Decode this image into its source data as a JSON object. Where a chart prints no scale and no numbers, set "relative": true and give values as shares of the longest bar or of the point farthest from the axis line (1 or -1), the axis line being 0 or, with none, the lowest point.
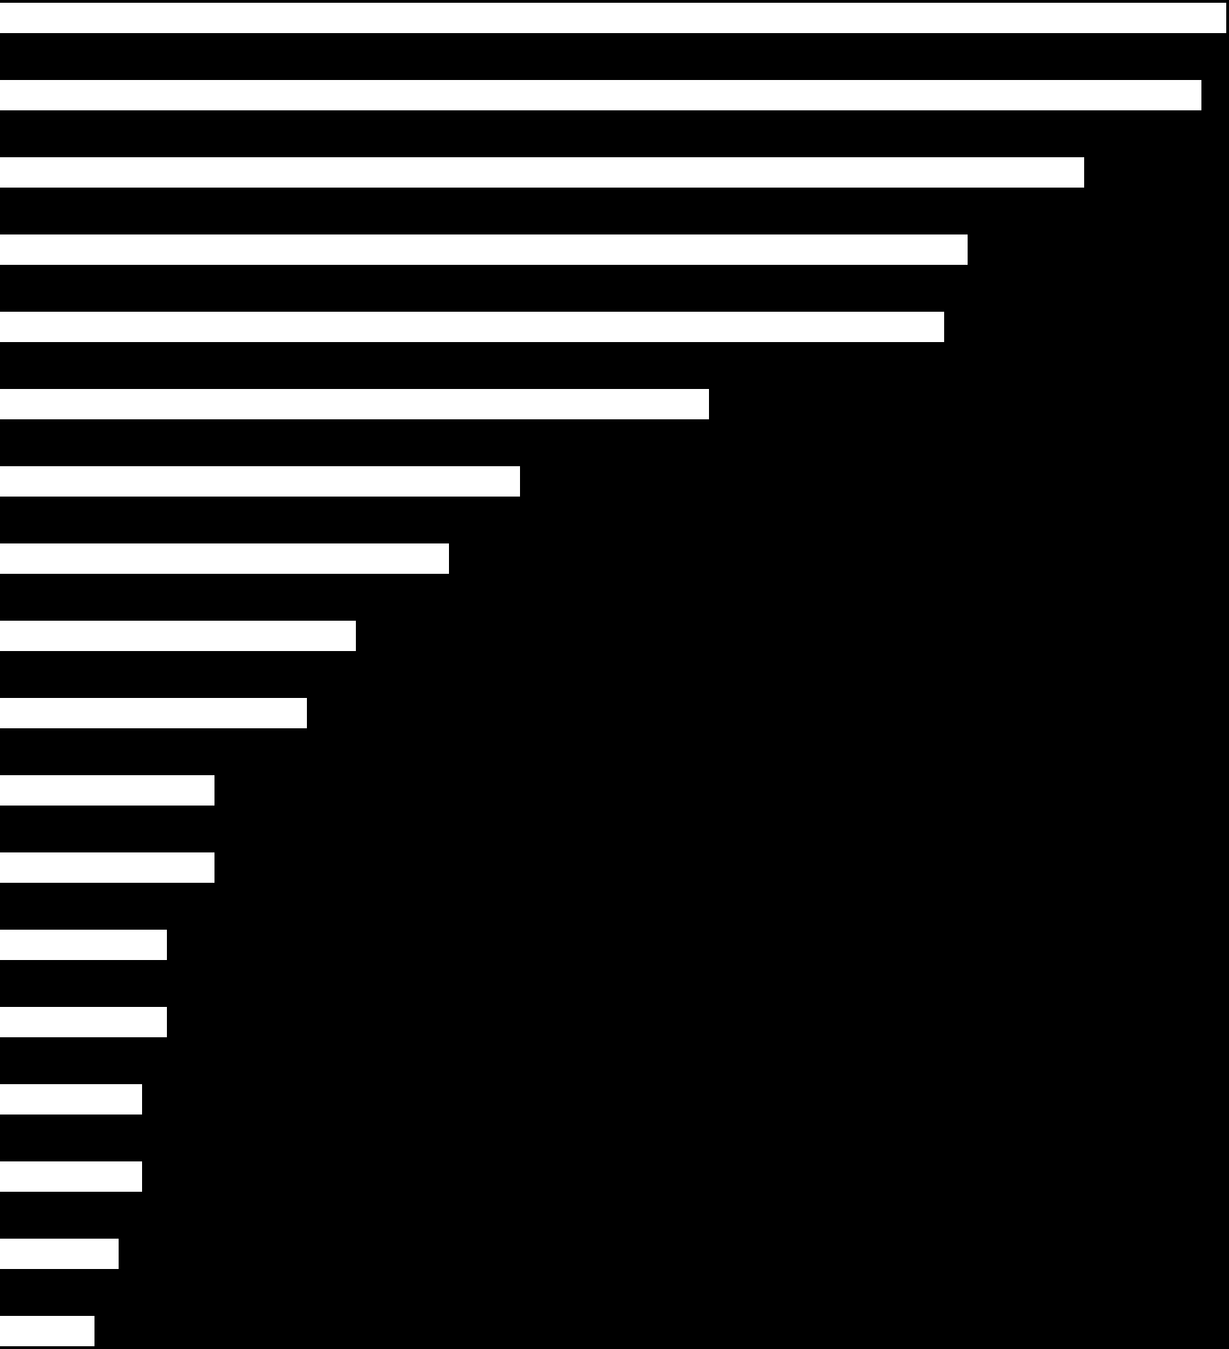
{
  "chart_data": {
    "type": "bar",
    "orientation": "horizontal",
    "relative": true,
    "categories": [
      null,
      null,
      null,
      null,
      null,
      null,
      null,
      null,
      null,
      null,
      null,
      null,
      null,
      null,
      null,
      null,
      null,
      null
    ],
    "values": [
      1,
      0.98,
      0.884,
      0.789,
      0.77,
      0.578,
      0.424,
      0.366,
      0.29,
      0.25,
      0.175,
      0.175,
      0.136,
      0.136,
      0.116,
      0.116,
      0.097,
      0.077
    ],
    "color": "#ffffff"
  }
}
